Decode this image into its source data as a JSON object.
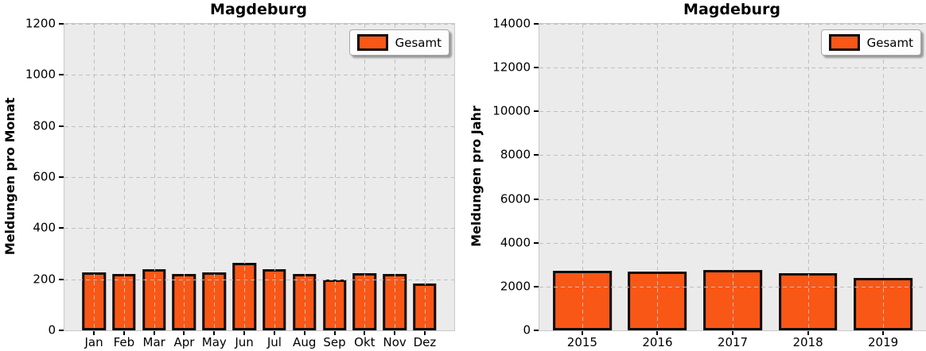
{
  "style": {
    "bar_color": "#F95716",
    "bar_edge_color": "#0D0D0D",
    "plot_bg": "#EBEBEB",
    "grid_color": "#BFBFBF",
    "frame_color": "#C8C8C8"
  },
  "chart_data": [
    {
      "type": "bar",
      "title": "Magdeburg",
      "xlabel": "",
      "ylabel": "Meldungen pro Monat",
      "categories": [
        "Jan",
        "Feb",
        "Mar",
        "Apr",
        "May",
        "Jun",
        "Jul",
        "Aug",
        "Sep",
        "Okt",
        "Nov",
        "Dez"
      ],
      "series": [
        {
          "name": "Gesamt",
          "values": [
            228,
            220,
            238,
            222,
            227,
            264,
            238,
            220,
            199,
            223,
            221,
            182
          ]
        }
      ],
      "ylim": [
        0,
        1200
      ],
      "yticks": [
        0,
        200,
        400,
        600,
        800,
        1000,
        1200
      ],
      "grid": "dashed, drawn above bars, horizontal and vertical",
      "legend_position": "upper right",
      "legend_label": "Gesamt",
      "x_pad": 0.48,
      "bar_rel_width": 0.78
    },
    {
      "type": "bar",
      "title": "Magdeburg",
      "xlabel": "",
      "ylabel": "Meldungen pro Jahr",
      "categories": [
        "2015",
        "2016",
        "2017",
        "2018",
        "2019"
      ],
      "series": [
        {
          "name": "Gesamt",
          "values": [
            2720,
            2680,
            2750,
            2630,
            2400
          ]
        }
      ],
      "ylim": [
        0,
        14000
      ],
      "yticks": [
        0,
        2000,
        4000,
        6000,
        8000,
        10000,
        12000,
        14000
      ],
      "grid": "dashed, drawn above bars, horizontal and vertical",
      "legend_position": "upper right",
      "legend_label": "Gesamt",
      "x_pad": 0.07,
      "bar_rel_width": 0.78
    }
  ]
}
